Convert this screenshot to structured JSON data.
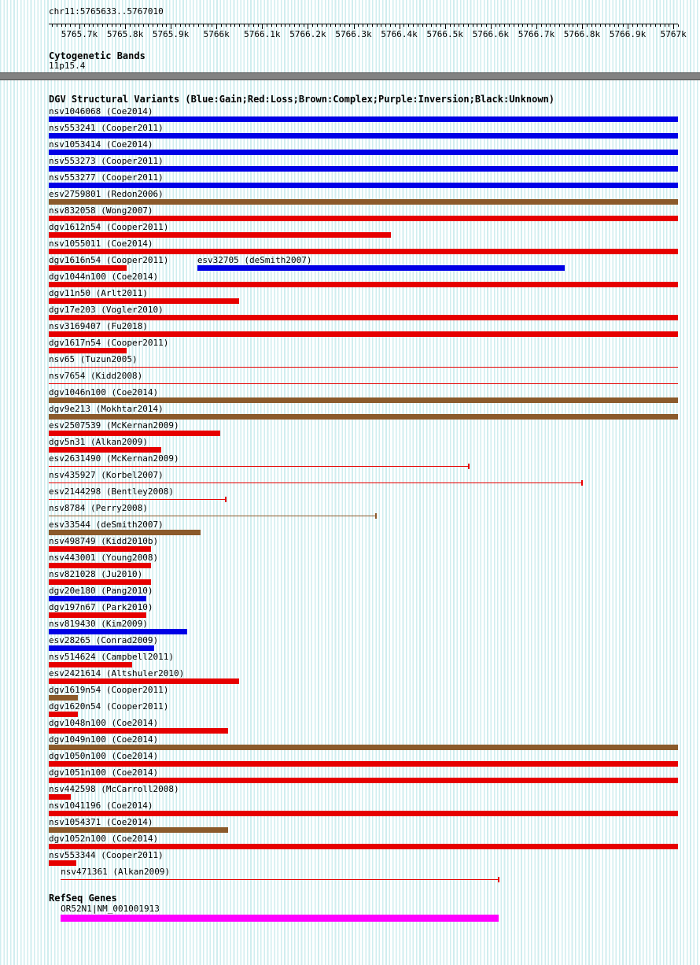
{
  "page": {
    "coordinate_label": "chr11:5765633..5767010",
    "cytoband_title": "Cytogenetic Bands",
    "cytoband_name": "11p15.4",
    "dgv_title": "DGV Structural Variants (Blue:Gain;Red:Loss;Brown:Complex;Purple:Inversion;Black:Unknown)",
    "refseq_title": "RefSeq Genes"
  },
  "colors": {
    "gain": "#0000e6",
    "loss": "#e60000",
    "complex": "#8b5a2b",
    "inversion": "#7a007a",
    "unknown": "#000000",
    "gene": "#ff00ff",
    "cytoband": "#828282",
    "background_stripe": "#dff2f3"
  },
  "chart_data": {
    "type": "bar",
    "title": "DGV Structural Variants over chr11:5765633..5767010",
    "xlabel": "chr11 position (bp)",
    "region": {
      "chrom": "chr11",
      "start": 5765633,
      "end": 5767010
    },
    "ruler_ticks": [
      {
        "label": "5765.7k",
        "bp": 5765700
      },
      {
        "label": "5765.8k",
        "bp": 5765800
      },
      {
        "label": "5765.9k",
        "bp": 5765900
      },
      {
        "label": "5766k",
        "bp": 5766000
      },
      {
        "label": "5766.1k",
        "bp": 5766100
      },
      {
        "label": "5766.2k",
        "bp": 5766200
      },
      {
        "label": "5766.3k",
        "bp": 5766300
      },
      {
        "label": "5766.4k",
        "bp": 5766400
      },
      {
        "label": "5766.5k",
        "bp": 5766500
      },
      {
        "label": "5766.6k",
        "bp": 5766600
      },
      {
        "label": "5766.7k",
        "bp": 5766700
      },
      {
        "label": "5766.8k",
        "bp": 5766800
      },
      {
        "label": "5766.9k",
        "bp": 5766900
      },
      {
        "label": "5767k",
        "bp": 5767000
      }
    ],
    "cytoband": {
      "name": "11p15.4",
      "start": 5765633,
      "end": 5767010
    },
    "variant_rows": [
      [
        {
          "label": "nsv1046068 (Coe2014)",
          "type": "gain",
          "style": "box",
          "start": 5765633,
          "end": 5767010
        }
      ],
      [
        {
          "label": "nsv553241 (Cooper2011)",
          "type": "gain",
          "style": "box",
          "start": 5765633,
          "end": 5767010
        }
      ],
      [
        {
          "label": "nsv1053414 (Coe2014)",
          "type": "gain",
          "style": "box",
          "start": 5765633,
          "end": 5767010
        }
      ],
      [
        {
          "label": "nsv553273 (Cooper2011)",
          "type": "gain",
          "style": "box",
          "start": 5765633,
          "end": 5767010
        }
      ],
      [
        {
          "label": "nsv553277 (Cooper2011)",
          "type": "gain",
          "style": "box",
          "start": 5765633,
          "end": 5767010
        }
      ],
      [
        {
          "label": "esv2759801 (Redon2006)",
          "type": "complex",
          "style": "box",
          "start": 5765633,
          "end": 5767010
        }
      ],
      [
        {
          "label": "nsv832058 (Wong2007)",
          "type": "loss",
          "style": "box",
          "start": 5765633,
          "end": 5767010
        }
      ],
      [
        {
          "label": "dgv1612n54 (Cooper2011)",
          "type": "loss",
          "style": "box",
          "start": 5765633,
          "end": 5766382
        }
      ],
      [
        {
          "label": "nsv1055011 (Coe2014)",
          "type": "loss",
          "style": "box",
          "start": 5765633,
          "end": 5767010
        }
      ],
      [
        {
          "label": "dgv1616n54 (Cooper2011)",
          "type": "loss",
          "style": "box",
          "start": 5765633,
          "end": 5765803
        },
        {
          "label": "esv32705 (deSmith2007)",
          "type": "gain",
          "style": "box",
          "start": 5765958,
          "end": 5766762
        }
      ],
      [
        {
          "label": "dgv1044n100 (Coe2014)",
          "type": "loss",
          "style": "box",
          "start": 5765633,
          "end": 5767010
        }
      ],
      [
        {
          "label": "dgv11n50 (Arlt2011)",
          "type": "loss",
          "style": "box",
          "start": 5765633,
          "end": 5766050
        }
      ],
      [
        {
          "label": "dgv17e203 (Vogler2010)",
          "type": "loss",
          "style": "box",
          "start": 5765633,
          "end": 5767010
        }
      ],
      [
        {
          "label": "nsv3169407 (Fu2018)",
          "type": "loss",
          "style": "box",
          "start": 5765633,
          "end": 5767010
        }
      ],
      [
        {
          "label": "dgv1617n54 (Cooper2011)",
          "type": "loss",
          "style": "box",
          "start": 5765633,
          "end": 5765803
        }
      ],
      [
        {
          "label": "nsv65 (Tuzun2005)",
          "type": "loss",
          "style": "line",
          "start": 5765633,
          "end": 5767010,
          "end_tick": false
        }
      ],
      [
        {
          "label": "nsv7654 (Kidd2008)",
          "type": "loss",
          "style": "line",
          "start": 5765633,
          "end": 5767010,
          "end_tick": false
        }
      ],
      [
        {
          "label": "dgv1046n100 (Coe2014)",
          "type": "complex",
          "style": "box",
          "start": 5765633,
          "end": 5767010
        }
      ],
      [
        {
          "label": "dgv9e213 (Mokhtar2014)",
          "type": "complex",
          "style": "box",
          "start": 5765633,
          "end": 5767010
        }
      ],
      [
        {
          "label": "esv2507539 (McKernan2009)",
          "type": "loss",
          "style": "box",
          "start": 5765633,
          "end": 5766008
        }
      ],
      [
        {
          "label": "dgv5n31 (Alkan2009)",
          "type": "loss",
          "style": "box",
          "start": 5765633,
          "end": 5765879
        }
      ],
      [
        {
          "label": "esv2631490 (McKernan2009)",
          "type": "loss",
          "style": "line",
          "start": 5765633,
          "end": 5766552,
          "end_tick": true
        }
      ],
      [
        {
          "label": "nsv435927 (Korbel2007)",
          "type": "loss",
          "style": "line",
          "start": 5765633,
          "end": 5766800,
          "end_tick": true
        }
      ],
      [
        {
          "label": "esv2144298 (Bentley2008)",
          "type": "loss",
          "style": "line",
          "start": 5765633,
          "end": 5766020,
          "end_tick": true
        }
      ],
      [
        {
          "label": "nsv8784 (Perry2008)",
          "type": "complex",
          "style": "line",
          "start": 5765633,
          "end": 5766349,
          "end_tick": true
        }
      ],
      [
        {
          "label": "esv33544 (deSmith2007)",
          "type": "complex",
          "style": "box",
          "start": 5765633,
          "end": 5765965
        }
      ],
      [
        {
          "label": "nsv498749 (Kidd2010b)",
          "type": "loss",
          "style": "box",
          "start": 5765633,
          "end": 5765857
        }
      ],
      [
        {
          "label": "nsv443001 (Young2008)",
          "type": "loss",
          "style": "box",
          "start": 5765633,
          "end": 5765857
        }
      ],
      [
        {
          "label": "nsv821028 (Ju2010)",
          "type": "loss",
          "style": "box",
          "start": 5765633,
          "end": 5765857
        }
      ],
      [
        {
          "label": "dgv20e180 (Pang2010)",
          "type": "gain",
          "style": "box",
          "start": 5765633,
          "end": 5765846
        }
      ],
      [
        {
          "label": "dgv197n67 (Park2010)",
          "type": "loss",
          "style": "box",
          "start": 5765633,
          "end": 5765846
        }
      ],
      [
        {
          "label": "nsv819430 (Kim2009)",
          "type": "gain",
          "style": "box",
          "start": 5765633,
          "end": 5765936
        }
      ],
      [
        {
          "label": "esv28265 (Conrad2009)",
          "type": "gain",
          "style": "box",
          "start": 5765633,
          "end": 5765864
        }
      ],
      [
        {
          "label": "nsv514624 (Campbell2011)",
          "type": "loss",
          "style": "box",
          "start": 5765633,
          "end": 5765816
        }
      ],
      [
        {
          "label": "esv2421614 (Altshuler2010)",
          "type": "loss",
          "style": "box",
          "start": 5765633,
          "end": 5766050
        }
      ],
      [
        {
          "label": "dgv1619n54 (Cooper2011)",
          "type": "complex",
          "style": "box",
          "start": 5765633,
          "end": 5765697
        }
      ],
      [
        {
          "label": "dgv1620n54 (Cooper2011)",
          "type": "loss",
          "style": "box",
          "start": 5765633,
          "end": 5765697
        }
      ],
      [
        {
          "label": "dgv1048n100 (Coe2014)",
          "type": "loss",
          "style": "box",
          "start": 5765633,
          "end": 5766025
        }
      ],
      [
        {
          "label": "dgv1049n100 (Coe2014)",
          "type": "complex",
          "style": "box",
          "start": 5765633,
          "end": 5767010
        }
      ],
      [
        {
          "label": "dgv1050n100 (Coe2014)",
          "type": "loss",
          "style": "box",
          "start": 5765633,
          "end": 5767010
        }
      ],
      [
        {
          "label": "dgv1051n100 (Coe2014)",
          "type": "loss",
          "style": "box",
          "start": 5765633,
          "end": 5767010
        }
      ],
      [
        {
          "label": "nsv442598 (McCarroll2008)",
          "type": "loss",
          "style": "box",
          "start": 5765633,
          "end": 5765681
        }
      ],
      [
        {
          "label": "nsv1041196 (Coe2014)",
          "type": "loss",
          "style": "box",
          "start": 5765633,
          "end": 5767010
        }
      ],
      [
        {
          "label": "nsv1054371 (Coe2014)",
          "type": "complex",
          "style": "box",
          "start": 5765633,
          "end": 5766025
        }
      ],
      [
        {
          "label": "dgv1052n100 (Coe2014)",
          "type": "loss",
          "style": "box",
          "start": 5765633,
          "end": 5767010
        }
      ],
      [
        {
          "label": "nsv553344 (Cooper2011)",
          "type": "loss",
          "style": "box",
          "start": 5765633,
          "end": 5765693
        }
      ],
      [
        {
          "label": "nsv471361 (Alkan2009)",
          "type": "loss",
          "style": "line",
          "start": 5765659,
          "end": 5766618,
          "end_tick": true
        }
      ]
    ],
    "genes": [
      {
        "label": "OR52N1|NM_001001913",
        "start": 5765659,
        "end": 5766618
      }
    ]
  }
}
